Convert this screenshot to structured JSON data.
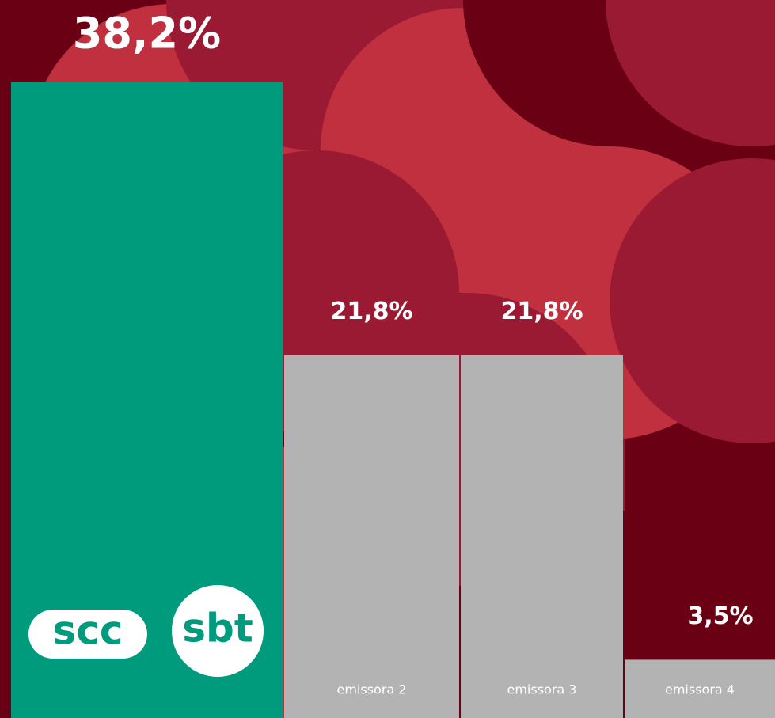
{
  "chart_data": {
    "type": "bar",
    "categories": [
      null,
      "emissora 2",
      "emissora 3",
      "emissora 4"
    ],
    "values": [
      38.2,
      21.8,
      21.8,
      3.5
    ],
    "value_labels": [
      "38,2%",
      "21,8%",
      "21,8%",
      "3,5%"
    ],
    "colors": [
      "#009b7d",
      "#b3b3b3",
      "#b3b3b3",
      "#b3b3b3"
    ],
    "logos": [
      "scc",
      "sbt"
    ]
  }
}
